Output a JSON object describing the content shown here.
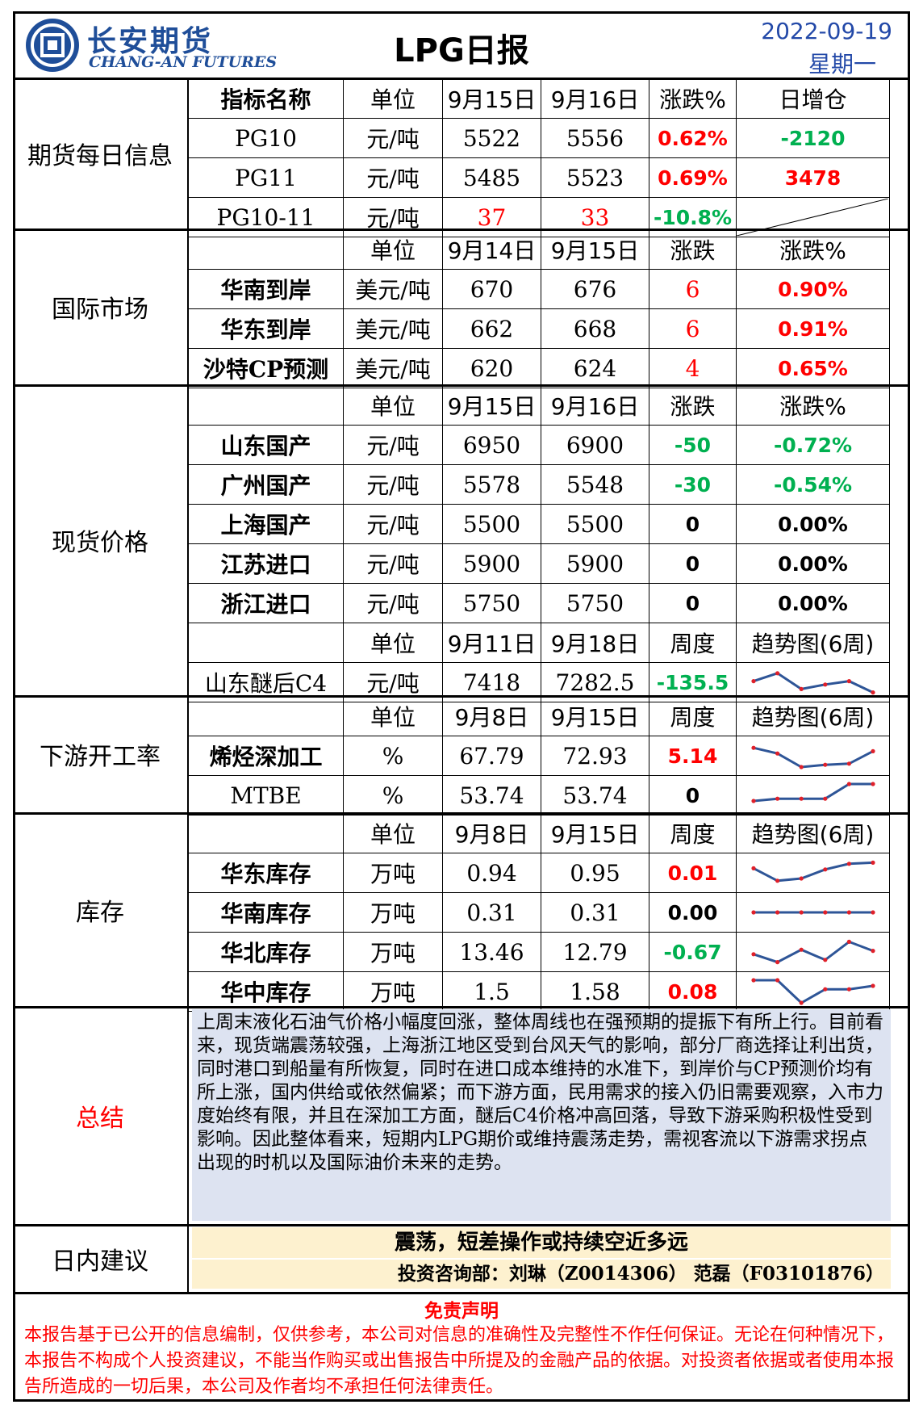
{
  "header": {
    "brand_cn": "长安期货",
    "brand_en": "CHANG-AN FUTURES",
    "title": "LPG日报",
    "date": "2022-09-19",
    "weekday": "星期一"
  },
  "futures": {
    "label": "期货每日信息",
    "headers": [
      "指标名称",
      "单位",
      "9月15日",
      "9月16日",
      "涨跌%",
      "日增仓"
    ],
    "rows": [
      {
        "name": "PG10",
        "unit": "元/吨",
        "d1": "5522",
        "d2": "5556",
        "chg": "0.62%",
        "oi": "-2120"
      },
      {
        "name": "PG11",
        "unit": "元/吨",
        "d1": "5485",
        "d2": "5523",
        "chg": "0.69%",
        "oi": "3478"
      },
      {
        "name": "PG10-11",
        "unit": "元/吨",
        "d1": "37",
        "d2": "33",
        "chg": "-10.8%",
        "oi": ""
      }
    ]
  },
  "intl": {
    "label": "国际市场",
    "headers": [
      "单位",
      "9月14日",
      "9月15日",
      "涨跌",
      "涨跌%"
    ],
    "rows": [
      {
        "name": "华南到岸",
        "unit": "美元/吨",
        "d1": "670",
        "d2": "676",
        "chg": "6",
        "pct": "0.90%"
      },
      {
        "name": "华东到岸",
        "unit": "美元/吨",
        "d1": "662",
        "d2": "668",
        "chg": "6",
        "pct": "0.91%"
      },
      {
        "name": "沙特CP预测",
        "unit": "美元/吨",
        "d1": "620",
        "d2": "624",
        "chg": "4",
        "pct": "0.65%"
      }
    ]
  },
  "spot": {
    "label": "现货价格",
    "headers": [
      "单位",
      "9月15日",
      "9月16日",
      "涨跌",
      "涨跌%"
    ],
    "rows": [
      {
        "name": "山东国产",
        "unit": "元/吨",
        "d1": "6950",
        "d2": "6900",
        "chg": "-50",
        "pct": "-0.72%"
      },
      {
        "name": "广州国产",
        "unit": "元/吨",
        "d1": "5578",
        "d2": "5548",
        "chg": "-30",
        "pct": "-0.54%"
      },
      {
        "name": "上海国产",
        "unit": "元/吨",
        "d1": "5500",
        "d2": "5500",
        "chg": "0",
        "pct": "0.00%"
      },
      {
        "name": "江苏进口",
        "unit": "元/吨",
        "d1": "5900",
        "d2": "5900",
        "chg": "0",
        "pct": "0.00%"
      },
      {
        "name": "浙江进口",
        "unit": "元/吨",
        "d1": "5750",
        "d2": "5750",
        "chg": "0",
        "pct": "0.00%"
      }
    ],
    "headers2": [
      "单位",
      "9月11日",
      "9月18日",
      "周度",
      "趋势图(6周)"
    ],
    "c4": {
      "name": "山东醚后C4",
      "unit": "元/吨",
      "d1": "7418",
      "d2": "7282.5",
      "chg": "-135.5"
    }
  },
  "downstream": {
    "label": "下游开工率",
    "headers": [
      "单位",
      "9月8日",
      "9月15日",
      "周度",
      "趋势图(6周)"
    ],
    "rows": [
      {
        "name": "烯烃深加工",
        "unit": "%",
        "d1": "67.79",
        "d2": "72.93",
        "chg": "5.14"
      },
      {
        "name": "MTBE",
        "unit": "%",
        "d1": "53.74",
        "d2": "53.74",
        "chg": "0"
      }
    ]
  },
  "inventory": {
    "label": "库存",
    "headers": [
      "单位",
      "9月8日",
      "9月15日",
      "周度",
      "趋势图(6周)"
    ],
    "rows": [
      {
        "name": "华东库存",
        "unit": "万吨",
        "d1": "0.94",
        "d2": "0.95",
        "chg": "0.01"
      },
      {
        "name": "华南库存",
        "unit": "万吨",
        "d1": "0.31",
        "d2": "0.31",
        "chg": "0.00"
      },
      {
        "name": "华北库存",
        "unit": "万吨",
        "d1": "13.46",
        "d2": "12.79",
        "chg": "-0.67"
      },
      {
        "name": "华中库存",
        "unit": "万吨",
        "d1": "1.5",
        "d2": "1.58",
        "chg": "0.08"
      }
    ]
  },
  "sparklines": {
    "c4": [
      0.55,
      0.9,
      0.2,
      0.4,
      0.55,
      0.05
    ],
    "olefin": [
      0.85,
      0.6,
      0.0,
      0.1,
      0.15,
      0.7
    ],
    "mtbe": [
      0.25,
      0.35,
      0.35,
      0.35,
      1.0,
      1.0
    ],
    "east": [
      0.7,
      0.15,
      0.25,
      0.65,
      0.9,
      0.95
    ],
    "south": [
      0.5,
      0.5,
      0.5,
      0.5,
      0.5,
      0.5
    ],
    "north": [
      0.4,
      0.05,
      0.6,
      0.15,
      0.95,
      0.55
    ],
    "central": [
      1.0,
      1.0,
      0.0,
      0.6,
      0.6,
      0.75
    ]
  },
  "colors": {
    "brand_blue": "#1f4e99",
    "date_blue": "#2349a8",
    "up_red": "#ff0000",
    "down_green": "#00b050",
    "spark_line": "#2e5597",
    "spark_dot": "#e0202a",
    "summary_bg": "#dde3f1",
    "advice_bg": "#fdf1cf"
  },
  "summary": {
    "label": "总结",
    "text": "上周末液化石油气价格小幅度回涨，整体周线也在强预期的提振下有所上行。目前看来，现货端震荡较强，上海浙江地区受到台风天气的影响，部分厂商选择让利出货，同时港口到船量有所恢复，同时在进口成本维持的水准下，到岸价与CP预测价均有所上涨，国内供给或依然偏紧；而下游方面，民用需求的接入仍旧需要观察，入市力度始终有限，并且在深加工方面，醚后C4价格冲高回落，导致下游采购积极性受到影响。因此整体看来，短期内LPG期价或维持震荡走势，需视客流以下游需求拐点出现的时机以及国际油价未来的走势。"
  },
  "intraday": {
    "label": "日内建议",
    "advice": "震荡，短差操作或持续空近多远",
    "contact": "投资咨询部：刘琳（Z0014306） 范磊（F03101876）"
  },
  "disclaimer": {
    "title": "免责声明",
    "text": "本报告基于已公开的信息编制，仅供参考，本公司对信息的准确性及完整性不作任何保证。无论在何种情况下，本报告不构成个人投资建议，不能当作购买或出售报告中所提及的金融产品的依据。对投资者依据或者使用本报告所造成的一切后果，本公司及作者均不承担任何法律责任。"
  }
}
